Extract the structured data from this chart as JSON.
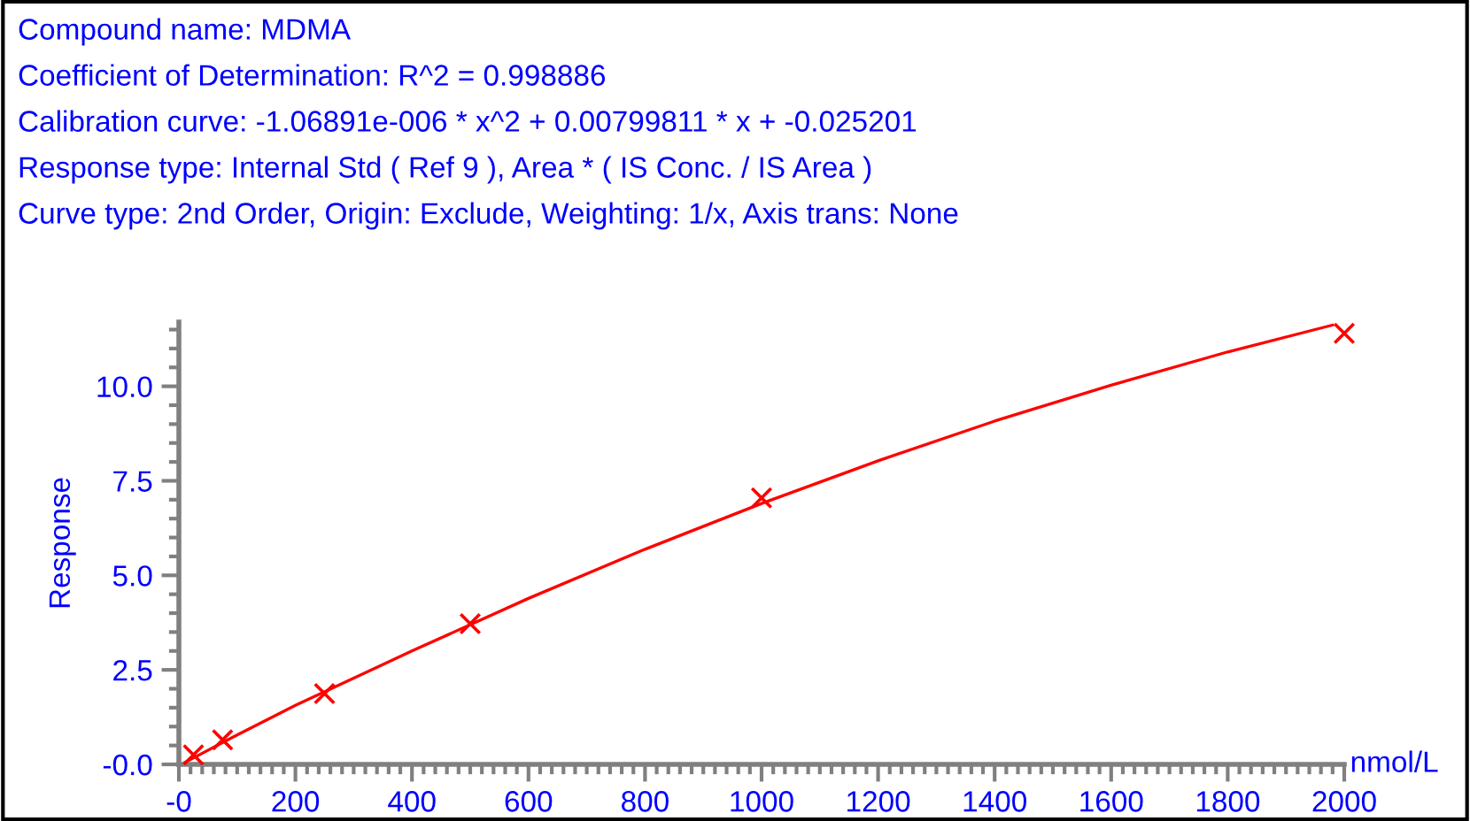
{
  "chart_data": {
    "type": "scatter",
    "title": "Compound name: MDMA",
    "annotations": [
      "Coefficient of Determination: R^2 = 0.998886",
      "Calibration curve: -1.06891e-006 * x^2 + 0.00799811 * x + -0.025201",
      "Response type: Internal Std ( Ref 9 ), Area * ( IS Conc. / IS Area )",
      "Curve type: 2nd Order, Origin: Exclude, Weighting: 1/x, Axis trans: None"
    ],
    "xlabel": "nmol/L",
    "ylabel": "Response",
    "series": [
      {
        "color": "#ff0000",
        "marker": "cross",
        "x": [
          25,
          75,
          250,
          500,
          1000,
          2000
        ],
        "values": [
          0.25,
          0.65,
          1.87,
          3.72,
          7.05,
          11.4
        ]
      },
      {
        "type": "line",
        "color": "#ff0000",
        "marker": "none",
        "x": [
          10,
          100,
          200,
          400,
          600,
          800,
          1000,
          1200,
          1400,
          1600,
          1800,
          1980
        ],
        "values": [
          0.05,
          0.78,
          1.56,
          3.0,
          4.39,
          5.69,
          6.9,
          8.03,
          9.08,
          10.03,
          10.91,
          11.62
        ]
      }
    ],
    "xlim": [
      0,
      2000
    ],
    "ylim": [
      0,
      11.7
    ],
    "xticks": [
      {
        "value": 0,
        "label": "-0"
      },
      200,
      400,
      600,
      800,
      1000,
      1200,
      1400,
      1600,
      1800,
      2000
    ],
    "yticks": [
      {
        "value": 0,
        "label": "-0.0"
      },
      2.5,
      {
        "value": 5,
        "label": "5.0"
      },
      7.5,
      {
        "value": 10,
        "label": "10.0"
      }
    ],
    "grid": false
  }
}
